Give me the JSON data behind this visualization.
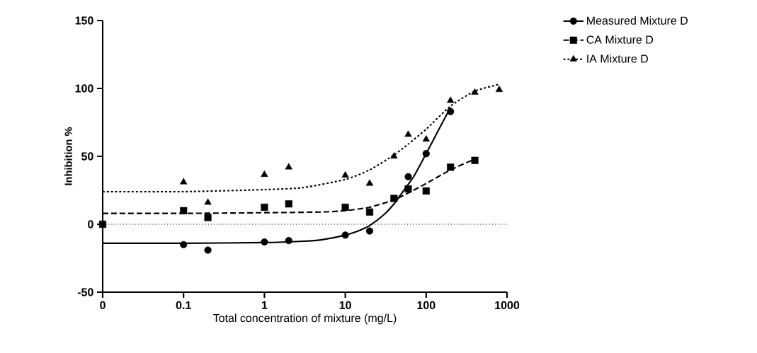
{
  "chart_data": {
    "type": "scatter",
    "xlabel": "Total concentration of mixture (mg/L)",
    "ylabel": "Inhibition %",
    "log": "x",
    "xlim": [
      0.01,
      1000
    ],
    "ylim": [
      -50,
      150
    ],
    "xticks": [
      {
        "value": 0.01,
        "label": "0"
      },
      0.1,
      1,
      10,
      100,
      1000
    ],
    "yticks": [
      -50,
      0,
      50,
      100,
      150
    ],
    "legend": "top right",
    "ref_lines": [
      {
        "axis": "y",
        "value": 0,
        "line_style": "dotted",
        "color": "#000000"
      }
    ],
    "series": [
      {
        "name": "Measured Mixture D",
        "marker": "circle",
        "line_style": "solid",
        "color": "#000000",
        "x": [
          0.1,
          0.2,
          1,
          2,
          10,
          20,
          60,
          100,
          200
        ],
        "values": [
          -15,
          -19,
          -13,
          -12,
          -8,
          -5,
          35,
          52,
          83
        ]
      },
      {
        "name": "CA Mixture D",
        "marker": "square",
        "line_style": "dashed",
        "color": "#000000",
        "x": [
          0.01,
          0.1,
          0.2,
          1,
          2,
          10,
          20,
          40,
          60,
          100,
          200,
          400
        ],
        "values": [
          0,
          10,
          5,
          12.5,
          15,
          12.5,
          9,
          19,
          26,
          24.5,
          42,
          47
        ]
      },
      {
        "name": "IA Mixture D",
        "marker": "triangle",
        "line_style": "dotted",
        "color": "#000000",
        "x": [
          0.1,
          0.2,
          1,
          2,
          10,
          20,
          40,
          60,
          100,
          200,
          400,
          800
        ],
        "values": [
          31,
          16,
          36.5,
          42,
          36,
          30,
          50,
          66,
          62.5,
          91,
          97,
          99
        ]
      },
      {
        "type": "line",
        "line_style": "solid",
        "color": "#000000",
        "x": [
          0.01,
          0.1,
          1,
          3,
          5,
          10,
          15,
          20,
          30,
          40,
          50,
          70,
          100,
          150,
          200
        ],
        "values": [
          -14,
          -14,
          -13.5,
          -12.5,
          -11.5,
          -8,
          -4.5,
          -1,
          7,
          15,
          23,
          35,
          52,
          72,
          86
        ]
      },
      {
        "type": "line",
        "line_style": "dashed",
        "color": "#000000",
        "x": [
          0.01,
          0.1,
          1,
          5,
          10,
          20,
          40,
          60,
          100,
          200,
          400
        ],
        "values": [
          8,
          8,
          8.5,
          9,
          10,
          12.5,
          18,
          23,
          30,
          40,
          48
        ]
      },
      {
        "type": "line",
        "line_style": "dotted",
        "color": "#000000",
        "x": [
          0.01,
          0.1,
          1,
          3,
          10,
          20,
          40,
          60,
          100,
          200,
          400,
          800
        ],
        "values": [
          24,
          24,
          25.5,
          27,
          33,
          40,
          51,
          59,
          70,
          87,
          98,
          103
        ]
      }
    ]
  }
}
